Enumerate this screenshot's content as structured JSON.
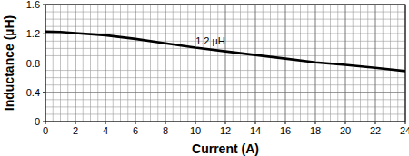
{
  "chart_data": {
    "type": "line",
    "x_label": "Current (A)",
    "y_label": "Inductance (µH)",
    "x": [
      0,
      1,
      2,
      4,
      6,
      8,
      10,
      12,
      14,
      16,
      18,
      20,
      22,
      24
    ],
    "values": [
      1.23,
      1.225,
      1.21,
      1.18,
      1.13,
      1.07,
      1.01,
      0.96,
      0.91,
      0.86,
      0.81,
      0.775,
      0.735,
      0.69
    ],
    "color": "#000000",
    "xlim": [
      0,
      24
    ],
    "xticks": [
      0,
      2,
      4,
      6,
      8,
      10,
      12,
      14,
      16,
      18,
      20,
      22,
      24
    ],
    "ylim": [
      0,
      1.6
    ],
    "yticks": [
      0,
      0.4,
      0.8,
      1.2,
      1.6
    ],
    "grid": true,
    "annotations": [
      {
        "text": "1.2 µH",
        "x": 11,
        "y": 1.06
      }
    ]
  }
}
